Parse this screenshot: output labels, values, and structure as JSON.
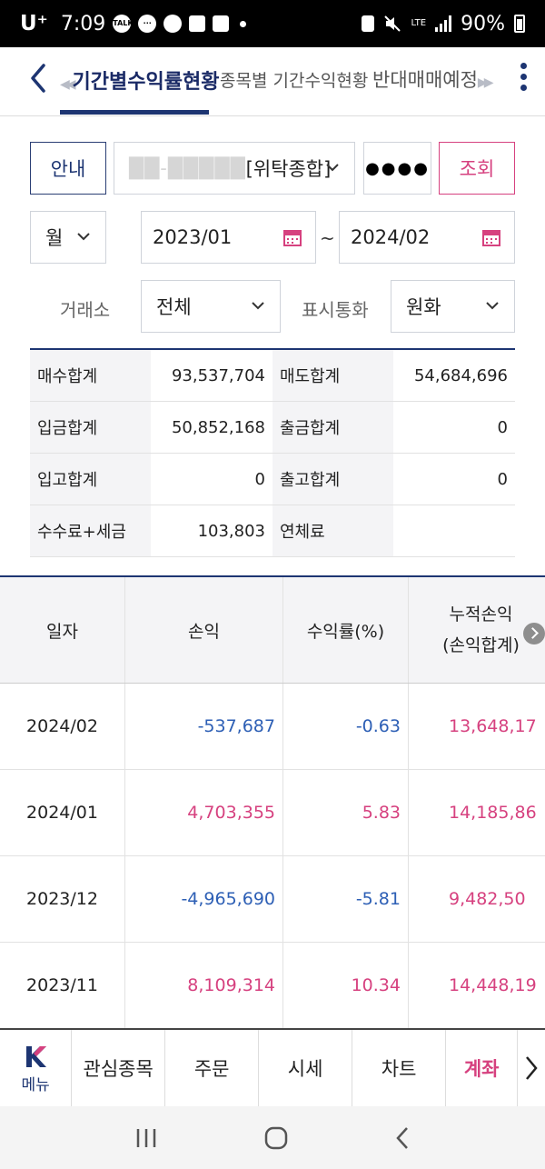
{
  "status_bar": {
    "carrier": "U⁺",
    "time": "7:09",
    "network": "LTE",
    "battery": "90%"
  },
  "header": {
    "tabs": [
      {
        "label": "기간별수익률현황",
        "active": true
      },
      {
        "label": "종목별 기간수익현황",
        "active": false
      },
      {
        "label": "반대매매예정",
        "active": false
      }
    ],
    "icons": [
      "back-icon",
      "more-vertical-icon"
    ]
  },
  "form": {
    "guide_label": "안내",
    "account_masked": "██-█████",
    "account_type": "[위탁종합]",
    "password_mask": "●●●●",
    "query_label": "조회",
    "period_unit": "월",
    "start_date": "2023/01",
    "end_date": "2024/02",
    "date_separator": "~",
    "exchange_label": "거래소",
    "exchange_value": "전체",
    "currency_label": "표시통화",
    "currency_value": "원화"
  },
  "summary": [
    {
      "label1": "매수합계",
      "value1": "93,537,704",
      "label2": "매도합계",
      "value2": "54,684,696"
    },
    {
      "label1": "입금합계",
      "value1": "50,852,168",
      "label2": "출금합계",
      "value2": "0"
    },
    {
      "label1": "입고합계",
      "value1": "0",
      "label2": "출고합계",
      "value2": "0"
    },
    {
      "label1": "수수료+세금",
      "value1": "103,803",
      "label2": "연체료",
      "value2": ""
    }
  ],
  "table": {
    "headers": {
      "date": "일자",
      "pnl": "손익",
      "rate": "수익률(%)",
      "cum_line1": "누적손익",
      "cum_line2": "(손익합계)"
    },
    "rows": [
      {
        "date": "2024/02",
        "pnl": "-537,687",
        "rate": "-0.63",
        "cum": "13,648,17",
        "sign": "neg"
      },
      {
        "date": "2024/01",
        "pnl": "4,703,355",
        "rate": "5.83",
        "cum": "14,185,86",
        "sign": "pos"
      },
      {
        "date": "2023/12",
        "pnl": "-4,965,690",
        "rate": "-5.81",
        "cum": "9,482,50",
        "sign": "neg"
      },
      {
        "date": "2023/11",
        "pnl": "8,109,314",
        "rate": "10.34",
        "cum": "14,448,19",
        "sign": "pos"
      }
    ]
  },
  "bottom_nav": {
    "menu_label": "메뉴",
    "items": [
      {
        "label": "관심종목",
        "active": false
      },
      {
        "label": "주문",
        "active": false
      },
      {
        "label": "시세",
        "active": false
      },
      {
        "label": "차트",
        "active": false
      },
      {
        "label": "계좌",
        "active": true
      }
    ]
  },
  "colors": {
    "brand_navy": "#1d3572",
    "accent_pink": "#d6417f",
    "negative_blue": "#2d5fb5"
  }
}
